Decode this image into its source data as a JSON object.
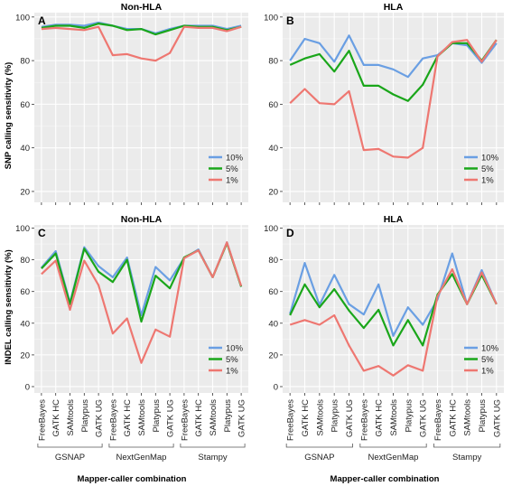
{
  "figure": {
    "shared_ylabel_top": "SNP calling sensitivity (%)",
    "shared_ylabel_bottom": "INDEL calling sensitivity (%)",
    "shared_xlabel": "Mapper-caller combination",
    "legend": [
      "10%",
      "5%",
      "1%"
    ]
  },
  "colors": {
    "10%": "#6a9fe3",
    "5%": "#1aa61a",
    "1%": "#ee7771",
    "panel_bg": "#ebebeb",
    "grid": "#ffffff",
    "strip": "#d9d9d9"
  },
  "chart_data": [
    {
      "panel": "A",
      "type": "line",
      "title": "Non-HLA",
      "ylabel": "SNP calling sensitivity (%)",
      "ylim": [
        15,
        102
      ],
      "yticks": [
        20,
        40,
        60,
        80,
        100
      ],
      "categories": [
        "FreeBayes",
        "GATK HC",
        "SAMtools",
        "Platypus",
        "GATK UG",
        "FreeBayes",
        "GATK HC",
        "SAMtools",
        "Platypus",
        "GATK UG",
        "FreeBayes",
        "GATK HC",
        "SAMtools",
        "Platypus",
        "GATK UG"
      ],
      "groups": [],
      "show_xticklabels": false,
      "legend_position": "bottom-right",
      "series": [
        {
          "name": "10%",
          "values": [
            95.5,
            96.5,
            96.5,
            96,
            97.5,
            96,
            94.5,
            94.5,
            92.5,
            94.5,
            96,
            96,
            96,
            94.5,
            96
          ]
        },
        {
          "name": "5%",
          "values": [
            95,
            96,
            96,
            95,
            97,
            96,
            94,
            94.5,
            92,
            94,
            96,
            95.5,
            95.5,
            94,
            95.5
          ]
        },
        {
          "name": "1%",
          "values": [
            94.5,
            95,
            94.5,
            94,
            95.5,
            82.5,
            83,
            81,
            80,
            83.5,
            95.5,
            95,
            95,
            93.5,
            95.5
          ]
        }
      ]
    },
    {
      "panel": "B",
      "type": "line",
      "title": "HLA",
      "ylabel": "",
      "ylim": [
        15,
        102
      ],
      "yticks": [
        20,
        40,
        60,
        80,
        100
      ],
      "categories": [
        "FreeBayes",
        "GATK HC",
        "SAMtools",
        "Platypus",
        "GATK UG",
        "FreeBayes",
        "GATK HC",
        "SAMtools",
        "Platypus",
        "GATK UG",
        "FreeBayes",
        "GATK HC",
        "SAMtools",
        "Platypus",
        "GATK UG"
      ],
      "groups": [],
      "show_xticklabels": false,
      "legend_position": "bottom-right",
      "series": [
        {
          "name": "10%",
          "values": [
            80,
            90,
            88,
            79.5,
            91.5,
            78,
            78,
            76,
            72.5,
            81,
            82.5,
            88,
            87,
            79,
            88
          ]
        },
        {
          "name": "5%",
          "values": [
            78,
            81,
            83,
            75,
            84.5,
            68.5,
            68.5,
            64.5,
            61.5,
            69,
            82,
            88,
            88,
            80,
            89.5
          ]
        },
        {
          "name": "1%",
          "values": [
            60.5,
            67,
            60.5,
            60,
            66,
            39,
            39.5,
            36,
            35.5,
            40,
            82,
            88.5,
            89.5,
            79.5,
            89.5
          ]
        }
      ]
    },
    {
      "panel": "C",
      "type": "line",
      "title": "Non-HLA",
      "ylabel": "INDEL calling sensitivity (%)",
      "ylim": [
        -4,
        102
      ],
      "yticks": [
        0,
        20,
        40,
        60,
        80,
        100
      ],
      "categories": [
        "FreeBayes",
        "GATK HC",
        "SAMtools",
        "Platypus",
        "GATK UG",
        "FreeBayes",
        "GATK HC",
        "SAMtools",
        "Platypus",
        "GATK UG",
        "FreeBayes",
        "GATK HC",
        "SAMtools",
        "Platypus",
        "GATK UG"
      ],
      "groups": [
        "GSNAP",
        "NextGenMap",
        "Stampy"
      ],
      "show_xticklabels": true,
      "legend_position": "bottom-right",
      "series": [
        {
          "name": "10%",
          "values": [
            75,
            85.5,
            53,
            88,
            76,
            69,
            81.5,
            45,
            75.5,
            67,
            81,
            86.5,
            69,
            91,
            63
          ]
        },
        {
          "name": "5%",
          "values": [
            74.5,
            84,
            52,
            87,
            72.5,
            66,
            80,
            41,
            70,
            62,
            81.5,
            86,
            69,
            90.5,
            63
          ]
        },
        {
          "name": "1%",
          "values": [
            71,
            79.5,
            48.5,
            79.5,
            64,
            33.5,
            43,
            15,
            36,
            31.5,
            81,
            86,
            69,
            91,
            63.5
          ]
        }
      ]
    },
    {
      "panel": "D",
      "type": "line",
      "title": "HLA",
      "ylabel": "",
      "ylim": [
        -4,
        102
      ],
      "yticks": [
        0,
        20,
        40,
        60,
        80,
        100
      ],
      "categories": [
        "FreeBayes",
        "GATK HC",
        "SAMtools",
        "Platypus",
        "GATK UG",
        "FreeBayes",
        "GATK HC",
        "SAMtools",
        "Platypus",
        "GATK UG",
        "FreeBayes",
        "GATK HC",
        "SAMtools",
        "Platypus",
        "GATK UG"
      ],
      "groups": [
        "GSNAP",
        "NextGenMap",
        "Stampy"
      ],
      "show_xticklabels": true,
      "legend_position": "bottom-right",
      "series": [
        {
          "name": "10%",
          "values": [
            46,
            78,
            51.5,
            70.5,
            52,
            45.5,
            64.5,
            32,
            50,
            39,
            55,
            84,
            52,
            73.5,
            52
          ]
        },
        {
          "name": "5%",
          "values": [
            45,
            64.5,
            50,
            61.5,
            48,
            37,
            48.5,
            26,
            42,
            26,
            58,
            71,
            52,
            70.5,
            52
          ]
        },
        {
          "name": "1%",
          "values": [
            39,
            42,
            39,
            45,
            26,
            10,
            13,
            7,
            13.5,
            10,
            57,
            74,
            52,
            72,
            52
          ]
        }
      ]
    }
  ]
}
